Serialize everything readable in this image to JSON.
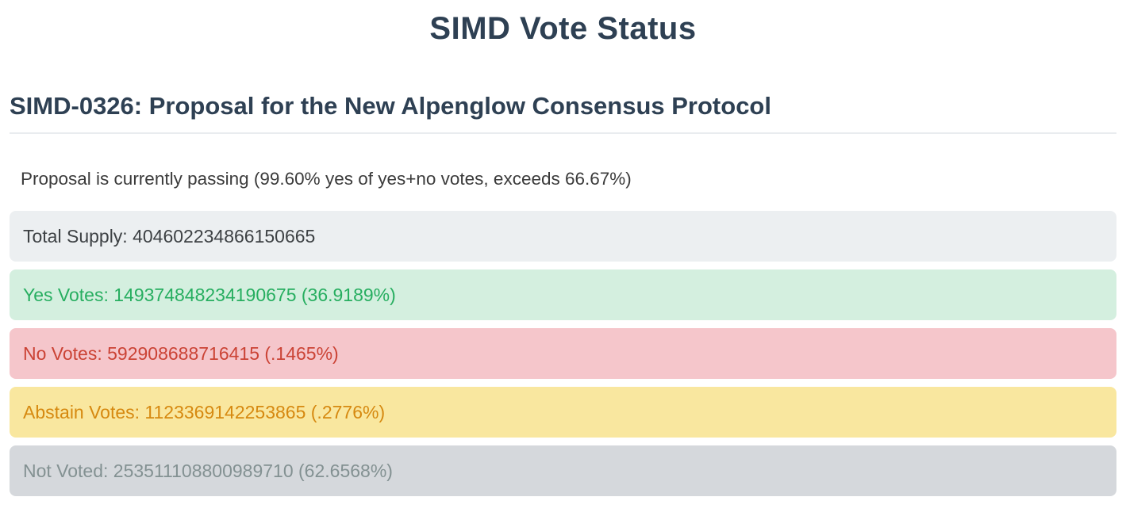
{
  "header": {
    "title": "SIMD Vote Status"
  },
  "proposal": {
    "heading": "SIMD-0326: Proposal for the New Alpenglow Consensus Protocol",
    "status_text": "Proposal is currently passing (99.60% yes of yes+no votes, exceeds 66.67%)",
    "status": "passing",
    "yes_of_yes_plus_no_percent": "99.60%",
    "pass_threshold_percent": "66.67%"
  },
  "vote_summary": {
    "total_supply": {
      "label": "Total Supply",
      "value": "404602234866150665",
      "text": "Total Supply: 404602234866150665",
      "bg_color": "#eceff1",
      "text_color": "#3d4144"
    },
    "yes": {
      "label": "Yes Votes",
      "value": "149374848234190675",
      "percent": "36.9189%",
      "text": "Yes Votes: 149374848234190675 (36.9189%)",
      "bg_color": "#d4efdf",
      "text_color": "#27ae60"
    },
    "no": {
      "label": "No Votes",
      "value": "592908688716415",
      "percent": ".1465%",
      "text": "No Votes: 592908688716415 (.1465%)",
      "bg_color": "#f5c6cb",
      "text_color": "#cb4335"
    },
    "abstain": {
      "label": "Abstain Votes",
      "value": "1123369142253865",
      "percent": ".2776%",
      "text": "Abstain Votes: 1123369142253865 (.2776%)",
      "bg_color": "#f9e79f",
      "text_color": "#d68910"
    },
    "not_voted": {
      "label": "Not Voted",
      "value": "253511108800989710",
      "percent": "62.6568%",
      "text": "Not Voted: 253511108800989710 (62.6568%)",
      "bg_color": "#d5d8dc",
      "text_color": "#839192"
    }
  }
}
